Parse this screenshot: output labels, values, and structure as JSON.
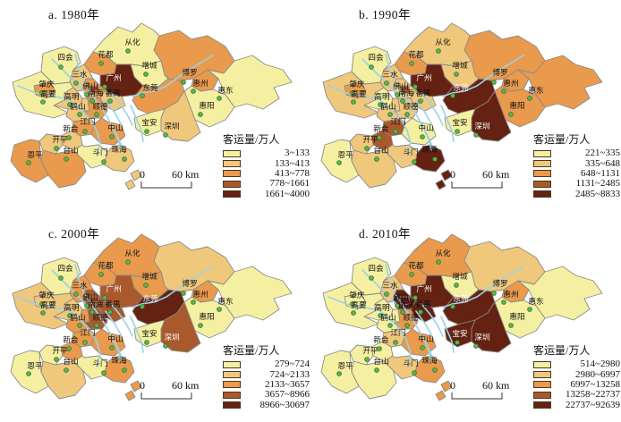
{
  "figure": {
    "legend_title": "客运量/万人",
    "scale": {
      "start_label": "0",
      "end_label": "60 km"
    },
    "class_colors": [
      "#F5F0A1",
      "#F0C87C",
      "#E99A4D",
      "#AA592C",
      "#652112"
    ],
    "region_border_color": "#8a8a8a",
    "river_color": "#9AD2E6",
    "marker": {
      "fill": "#5CB54E",
      "stroke": "#2F7129"
    },
    "label_color": "#111111",
    "label_color_on_dark": "#FFFFFF",
    "cities": [
      {
        "key": "conghua",
        "name": "从化"
      },
      {
        "key": "sihui",
        "name": "四会"
      },
      {
        "key": "huadu",
        "name": "花都"
      },
      {
        "key": "zengcheng",
        "name": "增城"
      },
      {
        "key": "sanshui",
        "name": "三水"
      },
      {
        "key": "guangzhou",
        "name": "广州"
      },
      {
        "key": "boluo",
        "name": "博罗"
      },
      {
        "key": "huizhou",
        "name": "惠州"
      },
      {
        "key": "huidong",
        "name": "惠东"
      },
      {
        "key": "zhaoqing",
        "name": "肇庆"
      },
      {
        "key": "gaoyao",
        "name": "高要"
      },
      {
        "key": "foshan",
        "name": "佛山"
      },
      {
        "key": "dongguan",
        "name": "东莞"
      },
      {
        "key": "gaoming",
        "name": "高明"
      },
      {
        "key": "nanhai",
        "name": "南海"
      },
      {
        "key": "panyu",
        "name": "番禺"
      },
      {
        "key": "heshan",
        "name": "鹤山"
      },
      {
        "key": "shunde",
        "name": "顺德"
      },
      {
        "key": "huiyang",
        "name": "惠阳"
      },
      {
        "key": "xinhui",
        "name": "新会"
      },
      {
        "key": "jiangmen",
        "name": "江门"
      },
      {
        "key": "zhongshan",
        "name": "中山"
      },
      {
        "key": "baoan",
        "name": "宝安"
      },
      {
        "key": "shenzhen",
        "name": "深圳"
      },
      {
        "key": "kaiping",
        "name": "开平"
      },
      {
        "key": "taishan",
        "name": "台山"
      },
      {
        "key": "enping",
        "name": "恩平"
      },
      {
        "key": "doumen",
        "name": "斗门"
      },
      {
        "key": "zhuhai",
        "name": "珠海"
      }
    ],
    "panels": [
      {
        "id": "a",
        "title": "a. 1980年",
        "legend_ranges": [
          "3~133",
          "133~413",
          "413~778",
          "778~1661",
          "1661~4000"
        ],
        "white_label_cities": [
          "guangzhou"
        ],
        "region_classes": {
          "conghua": 1,
          "huadu": 3,
          "zengcheng": 1,
          "boluo": 3,
          "huizhou": 3,
          "huidong": 1,
          "huiyang": 1,
          "sihui": 1,
          "zhaoqing": 3,
          "gaoyao": 1,
          "sanshui": 2,
          "guangzhou": 5,
          "foshan": 4,
          "nanhai": 3,
          "panyu": 2,
          "dongguan": 3,
          "gaoming": 2,
          "heshan": 2,
          "shunde": 3,
          "jiangmen": 3,
          "xinhui": 2,
          "zhongshan": 3,
          "baoan": 1,
          "shenzhen": 2,
          "kaiping": 2,
          "taishan": 3,
          "enping": 3,
          "doumen": 1,
          "zhuhai": 2,
          "zhuhai_south": 2
        }
      },
      {
        "id": "b",
        "title": "b. 1990年",
        "legend_ranges": [
          "221~335",
          "335~648",
          "648~1131",
          "1131~2485",
          "2485~8833"
        ],
        "white_label_cities": [
          "guangzhou",
          "dongguan",
          "shenzhen"
        ],
        "region_classes": {
          "conghua": 2,
          "huadu": 3,
          "zengcheng": 2,
          "boluo": 3,
          "huizhou": 3,
          "huidong": 3,
          "huiyang": 3,
          "sihui": 1,
          "zhaoqing": 3,
          "gaoyao": 2,
          "sanshui": 2,
          "guangzhou": 5,
          "foshan": 4,
          "nanhai": 2,
          "panyu": 2,
          "dongguan": 5,
          "gaoming": 1,
          "heshan": 2,
          "shunde": 2,
          "jiangmen": 4,
          "xinhui": 4,
          "zhongshan": 1,
          "baoan": 1,
          "shenzhen": 5,
          "kaiping": 2,
          "taishan": 2,
          "enping": 1,
          "doumen": 2,
          "zhuhai": 5,
          "zhuhai_south": 5
        }
      },
      {
        "id": "c",
        "title": "c. 2000年",
        "legend_ranges": [
          "279~724",
          "724~2133",
          "2133~3657",
          "3657~8966",
          "8966~30697"
        ],
        "white_label_cities": [
          "guangzhou",
          "dongguan",
          "shenzhen"
        ],
        "region_classes": {
          "conghua": 3,
          "huadu": 3,
          "zengcheng": 3,
          "boluo": 2,
          "huizhou": 3,
          "huidong": 1,
          "huiyang": 1,
          "sihui": 1,
          "zhaoqing": 2,
          "gaoyao": 2,
          "sanshui": 3,
          "guangzhou": 4,
          "foshan": 4,
          "nanhai": 4,
          "panyu": 4,
          "dongguan": 5,
          "gaoming": 2,
          "heshan": 3,
          "shunde": 4,
          "jiangmen": 3,
          "xinhui": 3,
          "zhongshan": 3,
          "baoan": 1,
          "shenzhen": 4,
          "kaiping": 1,
          "taishan": 2,
          "enping": 1,
          "doumen": 1,
          "zhuhai": 3,
          "zhuhai_south": 3
        }
      },
      {
        "id": "d",
        "title": "d. 2010年",
        "legend_ranges": [
          "514~2980",
          "2980~6997",
          "6997~13258",
          "13258~22737",
          "22737~92639"
        ],
        "white_label_cities": [
          "guangzhou",
          "dongguan",
          "shenzhen",
          "baoan"
        ],
        "region_classes": {
          "conghua": 3,
          "huadu": 3,
          "zengcheng": 1,
          "boluo": 2,
          "huizhou": 3,
          "huidong": 1,
          "huiyang": 1,
          "sihui": 1,
          "zhaoqing": 1,
          "gaoyao": 1,
          "sanshui": 2,
          "guangzhou": 5,
          "foshan": 5,
          "nanhai": 5,
          "panyu": 5,
          "dongguan": 5,
          "gaoming": 1,
          "heshan": 1,
          "shunde": 3,
          "jiangmen": 2,
          "xinhui": 1,
          "zhongshan": 3,
          "baoan": 5,
          "shenzhen": 5,
          "kaiping": 1,
          "taishan": 1,
          "enping": 1,
          "doumen": 2,
          "zhuhai": 3,
          "zhuhai_south": 3
        }
      }
    ]
  }
}
